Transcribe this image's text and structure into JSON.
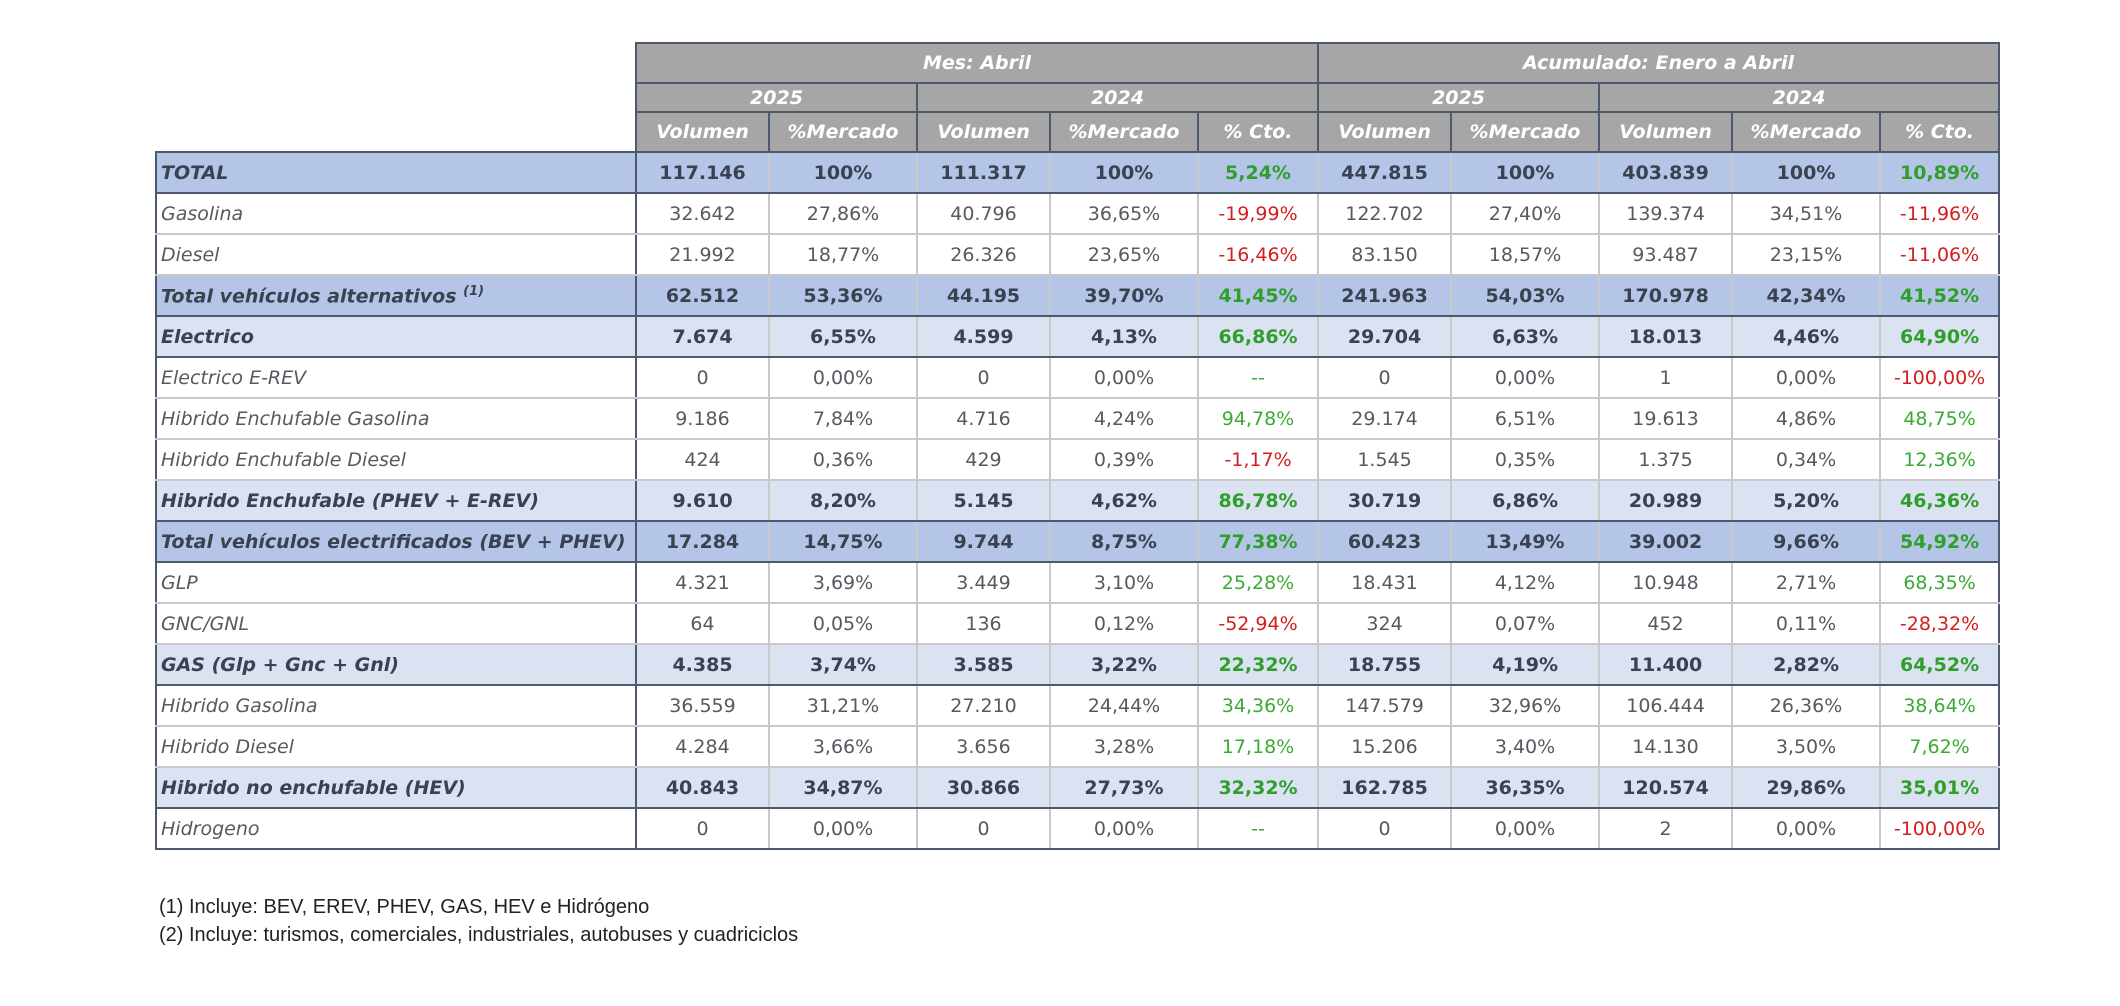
{
  "header": {
    "group_left": "Mes: Abril",
    "group_right": "Acumulado: Enero a Abril",
    "year_a": "2025",
    "year_b": "2024",
    "col_volumen": "Volumen",
    "col_mercado": "%Mercado",
    "col_cto": "% Cto."
  },
  "rows": [
    {
      "label": "TOTAL",
      "sup": "",
      "style": "total",
      "values": [
        "117.146",
        "100%",
        "111.317",
        "100%",
        "5,24%",
        "447.815",
        "100%",
        "403.839",
        "100%",
        "10,89%"
      ],
      "cto1": "pos",
      "cto2": "pos"
    },
    {
      "label": "Gasolina",
      "sup": "",
      "style": "normal",
      "values": [
        "32.642",
        "27,86%",
        "40.796",
        "36,65%",
        "-19,99%",
        "122.702",
        "27,40%",
        "139.374",
        "34,51%",
        "-11,96%"
      ],
      "cto1": "neg",
      "cto2": "neg"
    },
    {
      "label": "Diesel",
      "sup": "",
      "style": "normal",
      "values": [
        "21.992",
        "18,77%",
        "26.326",
        "23,65%",
        "-16,46%",
        "83.150",
        "18,57%",
        "93.487",
        "23,15%",
        "-11,06%"
      ],
      "cto1": "neg",
      "cto2": "neg"
    },
    {
      "label": "Total vehículos alternativos ",
      "sup": "(1)",
      "style": "total",
      "values": [
        "62.512",
        "53,36%",
        "44.195",
        "39,70%",
        "41,45%",
        "241.963",
        "54,03%",
        "170.978",
        "42,34%",
        "41,52%"
      ],
      "cto1": "pos",
      "cto2": "pos"
    },
    {
      "label": "Electrico",
      "sup": "",
      "style": "sub",
      "values": [
        "7.674",
        "6,55%",
        "4.599",
        "4,13%",
        "66,86%",
        "29.704",
        "6,63%",
        "18.013",
        "4,46%",
        "64,90%"
      ],
      "cto1": "pos",
      "cto2": "pos"
    },
    {
      "label": "Electrico E-REV",
      "sup": "",
      "style": "normal",
      "values": [
        "0",
        "0,00%",
        "0",
        "0,00%",
        "--",
        "0",
        "0,00%",
        "1",
        "0,00%",
        "-100,00%"
      ],
      "cto1": "pos",
      "cto2": "neg"
    },
    {
      "label": "Hibrido Enchufable Gasolina",
      "sup": "",
      "style": "normal",
      "values": [
        "9.186",
        "7,84%",
        "4.716",
        "4,24%",
        "94,78%",
        "29.174",
        "6,51%",
        "19.613",
        "4,86%",
        "48,75%"
      ],
      "cto1": "pos",
      "cto2": "pos"
    },
    {
      "label": "Hibrido Enchufable Diesel",
      "sup": "",
      "style": "normal",
      "values": [
        "424",
        "0,36%",
        "429",
        "0,39%",
        "-1,17%",
        "1.545",
        "0,35%",
        "1.375",
        "0,34%",
        "12,36%"
      ],
      "cto1": "neg",
      "cto2": "pos"
    },
    {
      "label": "Hibrido Enchufable (PHEV + E-REV)",
      "sup": "",
      "style": "sub",
      "values": [
        "9.610",
        "8,20%",
        "5.145",
        "4,62%",
        "86,78%",
        "30.719",
        "6,86%",
        "20.989",
        "5,20%",
        "46,36%"
      ],
      "cto1": "pos",
      "cto2": "pos"
    },
    {
      "label": "Total vehículos electrificados (BEV + PHEV)",
      "sup": "",
      "style": "total",
      "values": [
        "17.284",
        "14,75%",
        "9.744",
        "8,75%",
        "77,38%",
        "60.423",
        "13,49%",
        "39.002",
        "9,66%",
        "54,92%"
      ],
      "cto1": "pos",
      "cto2": "pos"
    },
    {
      "label": "GLP",
      "sup": "",
      "style": "normal",
      "values": [
        "4.321",
        "3,69%",
        "3.449",
        "3,10%",
        "25,28%",
        "18.431",
        "4,12%",
        "10.948",
        "2,71%",
        "68,35%"
      ],
      "cto1": "pos",
      "cto2": "pos"
    },
    {
      "label": "GNC/GNL",
      "sup": "",
      "style": "normal",
      "values": [
        "64",
        "0,05%",
        "136",
        "0,12%",
        "-52,94%",
        "324",
        "0,07%",
        "452",
        "0,11%",
        "-28,32%"
      ],
      "cto1": "neg",
      "cto2": "neg"
    },
    {
      "label": "GAS (Glp + Gnc + Gnl)",
      "sup": "",
      "style": "sub",
      "values": [
        "4.385",
        "3,74%",
        "3.585",
        "3,22%",
        "22,32%",
        "18.755",
        "4,19%",
        "11.400",
        "2,82%",
        "64,52%"
      ],
      "cto1": "pos",
      "cto2": "pos"
    },
    {
      "label": "Hibrido Gasolina",
      "sup": "",
      "style": "normal",
      "values": [
        "36.559",
        "31,21%",
        "27.210",
        "24,44%",
        "34,36%",
        "147.579",
        "32,96%",
        "106.444",
        "26,36%",
        "38,64%"
      ],
      "cto1": "pos",
      "cto2": "pos"
    },
    {
      "label": "Hibrido Diesel",
      "sup": "",
      "style": "normal",
      "values": [
        "4.284",
        "3,66%",
        "3.656",
        "3,28%",
        "17,18%",
        "15.206",
        "3,40%",
        "14.130",
        "3,50%",
        "7,62%"
      ],
      "cto1": "pos",
      "cto2": "pos"
    },
    {
      "label": "Hibrido no enchufable (HEV)",
      "sup": "",
      "style": "sub",
      "values": [
        "40.843",
        "34,87%",
        "30.866",
        "27,73%",
        "32,32%",
        "162.785",
        "36,35%",
        "120.574",
        "29,86%",
        "35,01%"
      ],
      "cto1": "pos",
      "cto2": "pos"
    },
    {
      "label": "Hidrogeno",
      "sup": "",
      "style": "normal",
      "values": [
        "0",
        "0,00%",
        "0",
        "0,00%",
        "--",
        "0",
        "0,00%",
        "2",
        "0,00%",
        "-100,00%"
      ],
      "cto1": "pos",
      "cto2": "neg"
    }
  ],
  "notes": [
    "(1) Incluye: BEV, EREV, PHEV, GAS, HEV e Hidrógeno",
    "(2) Incluye: turismos, comerciales, industriales, autobuses y cuadriciclos"
  ],
  "colors": {
    "positive": "#3aaa35",
    "negative": "#d21e1e",
    "total_bg": "#b4c5e7",
    "sub_bg": "#dbe3f2",
    "header_bg": "#a6a6a6"
  }
}
